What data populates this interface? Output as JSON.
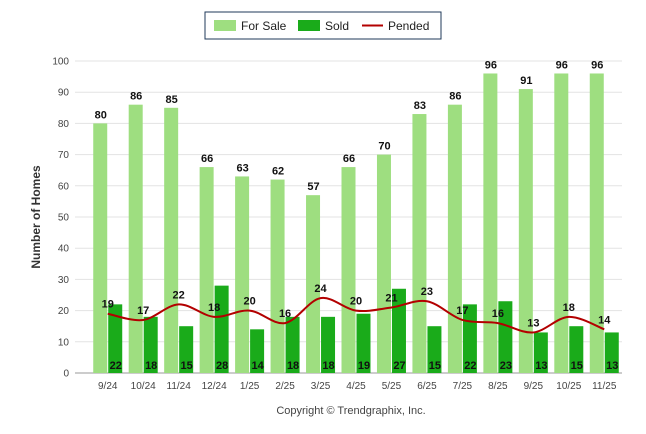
{
  "chart_data": {
    "type": "bar",
    "categories": [
      "9/24",
      "10/24",
      "11/24",
      "12/24",
      "1/25",
      "2/25",
      "3/25",
      "4/25",
      "5/25",
      "6/25",
      "7/25",
      "8/25",
      "9/25",
      "10/25",
      "11/25"
    ],
    "series": [
      {
        "name": "For Sale",
        "type": "bar",
        "color": "#9ede80",
        "values": [
          80,
          86,
          85,
          66,
          63,
          62,
          57,
          66,
          70,
          83,
          86,
          96,
          91,
          96,
          96
        ]
      },
      {
        "name": "Sold",
        "type": "bar",
        "color": "#1aab1a",
        "values": [
          22,
          18,
          15,
          28,
          14,
          18,
          18,
          19,
          27,
          15,
          22,
          23,
          13,
          15,
          13
        ]
      },
      {
        "name": "Pended",
        "type": "line",
        "color": "#b30000",
        "values": [
          19,
          17,
          22,
          18,
          20,
          16,
          24,
          20,
          21,
          23,
          17,
          16,
          13,
          18,
          14
        ]
      }
    ],
    "ylabel": "Number of Homes",
    "xlabel": "",
    "ylim": [
      0,
      100
    ],
    "yticks": [
      0,
      10,
      20,
      30,
      40,
      50,
      60,
      70,
      80,
      90,
      100
    ],
    "legend_position": "top-center",
    "grid": true
  },
  "footer": {
    "copyright": "Copyright © Trendgraphix, Inc."
  }
}
